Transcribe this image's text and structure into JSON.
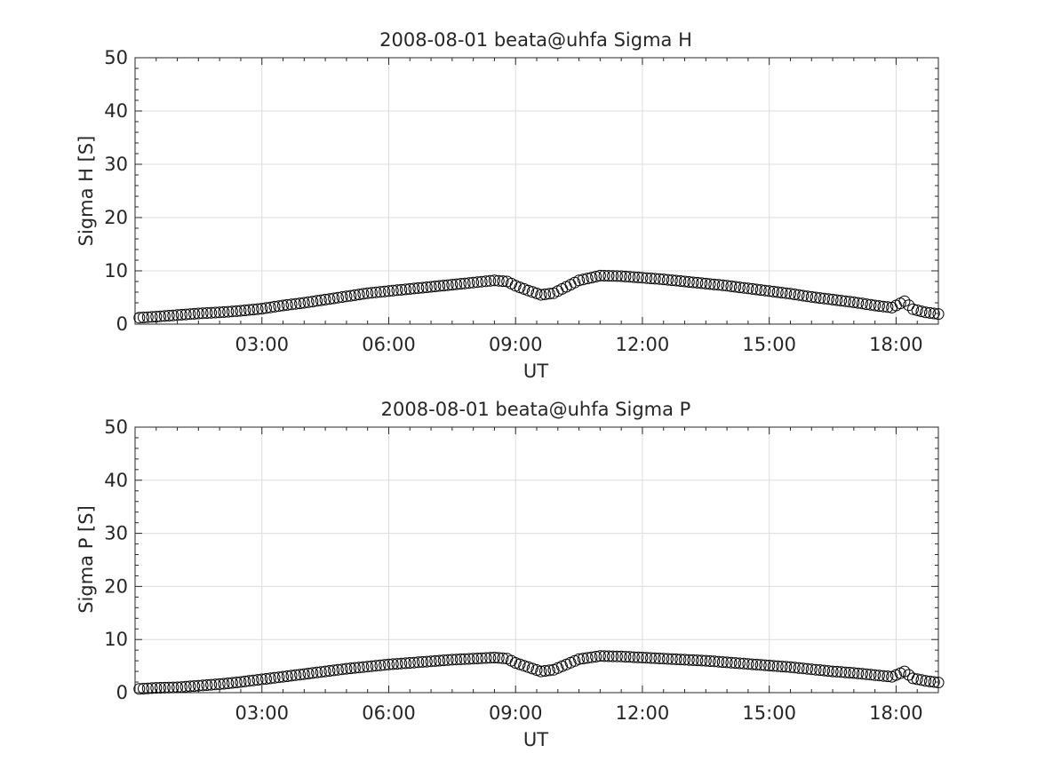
{
  "chart_data": [
    {
      "type": "scatter",
      "title": "2008-08-01  beata@uhfa Sigma H",
      "xlabel": "UT",
      "ylabel": "Sigma H [S]",
      "xlim": [
        "00:00",
        "19:00"
      ],
      "ylim": [
        0,
        50
      ],
      "yticks": [
        "0",
        "10",
        "20",
        "30",
        "40",
        "50"
      ],
      "xticks": [
        "03:00",
        "06:00",
        "09:00",
        "12:00",
        "15:00",
        "18:00"
      ],
      "grid": true,
      "marker": "open-circle",
      "x_hours": [
        0.1,
        0.5,
        1.0,
        1.5,
        2.0,
        2.5,
        3.0,
        3.5,
        4.0,
        4.5,
        5.0,
        5.5,
        6.0,
        6.5,
        7.0,
        7.5,
        8.0,
        8.5,
        8.8,
        9.0,
        9.3,
        9.6,
        9.9,
        10.2,
        10.5,
        11.0,
        11.5,
        12.0,
        12.5,
        13.0,
        13.5,
        14.0,
        14.5,
        15.0,
        15.5,
        16.0,
        16.5,
        17.0,
        17.5,
        17.9,
        18.2,
        18.4,
        18.7,
        19.0
      ],
      "y": [
        1.2,
        1.4,
        1.7,
        2.0,
        2.2,
        2.5,
        2.9,
        3.5,
        4.0,
        4.6,
        5.2,
        5.8,
        6.2,
        6.6,
        7.0,
        7.4,
        7.8,
        8.2,
        8.0,
        7.2,
        6.3,
        5.5,
        5.8,
        7.0,
        8.2,
        9.1,
        9.0,
        8.7,
        8.4,
        8.0,
        7.6,
        7.2,
        6.7,
        6.2,
        5.7,
        5.1,
        4.6,
        4.1,
        3.5,
        3.1,
        4.3,
        2.8,
        2.2,
        1.9
      ]
    },
    {
      "type": "scatter",
      "title": "2008-08-01  beata@uhfa Sigma P",
      "xlabel": "UT",
      "ylabel": "Sigma P [S]",
      "xlim": [
        "00:00",
        "19:00"
      ],
      "ylim": [
        0,
        50
      ],
      "yticks": [
        "0",
        "10",
        "20",
        "30",
        "40",
        "50"
      ],
      "xticks": [
        "03:00",
        "06:00",
        "09:00",
        "12:00",
        "15:00",
        "18:00"
      ],
      "grid": true,
      "marker": "open-circle",
      "x_hours": [
        0.1,
        0.5,
        1.0,
        1.5,
        2.0,
        2.5,
        3.0,
        3.5,
        4.0,
        4.5,
        5.0,
        5.5,
        6.0,
        6.5,
        7.0,
        7.5,
        8.0,
        8.5,
        8.8,
        9.0,
        9.3,
        9.6,
        9.9,
        10.2,
        10.5,
        11.0,
        11.5,
        12.0,
        12.5,
        13.0,
        13.5,
        14.0,
        14.5,
        15.0,
        15.5,
        16.0,
        16.5,
        17.0,
        17.5,
        17.9,
        18.2,
        18.4,
        18.7,
        19.0
      ],
      "y": [
        0.7,
        0.9,
        1.0,
        1.3,
        1.6,
        2.0,
        2.5,
        3.0,
        3.5,
        4.0,
        4.5,
        4.9,
        5.3,
        5.6,
        5.9,
        6.2,
        6.4,
        6.6,
        6.4,
        5.6,
        4.8,
        4.0,
        4.3,
        5.3,
        6.3,
        6.9,
        6.8,
        6.6,
        6.4,
        6.2,
        6.0,
        5.7,
        5.4,
        5.1,
        4.8,
        4.4,
        4.0,
        3.7,
        3.3,
        3.0,
        4.0,
        2.7,
        2.2,
        1.9
      ]
    }
  ]
}
